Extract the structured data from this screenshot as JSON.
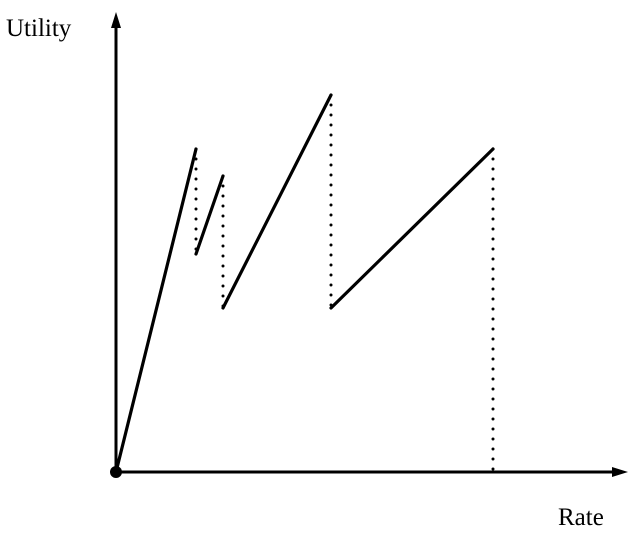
{
  "labels": {
    "y_axis": "Utility",
    "x_axis": "Rate"
  }
}
